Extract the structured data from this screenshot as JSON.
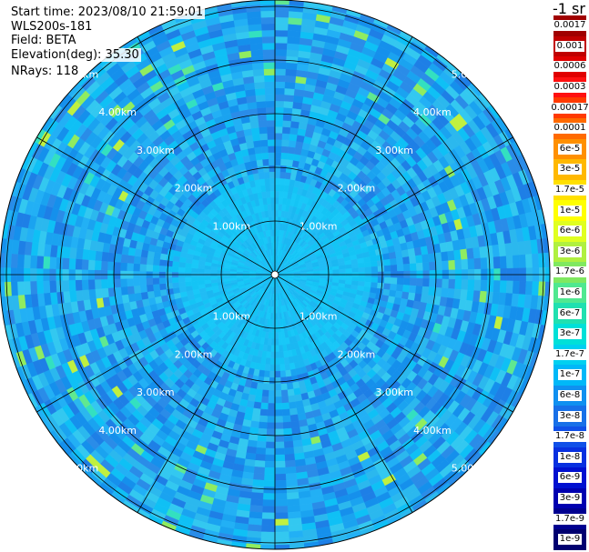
{
  "info": {
    "start_time": "Start time: 2023/08/10 21:59:01",
    "instrument": "WLS200s-181",
    "field": "Field: BETA",
    "elevation": "Elevation(deg): 35.30",
    "nrays": "NRays: 118"
  },
  "units": "-1 sr",
  "rings": {
    "labels": [
      "1.00km",
      "2.00km",
      "3.00km",
      "4.00km",
      "5.00km"
    ]
  },
  "colorbar": [
    {
      "label": "0.0017",
      "color": "#a00000"
    },
    {
      "label": "0.001",
      "color": "#c00000"
    },
    {
      "label": "0.0006",
      "color": "#e00000"
    },
    {
      "label": "0.0003",
      "color": "#ff1010"
    },
    {
      "label": "0.00017",
      "color": "#ff3a00"
    },
    {
      "label": "0.0001",
      "color": "#ff6a00"
    },
    {
      "label": "6e-5",
      "color": "#ff9000"
    },
    {
      "label": "3e-5",
      "color": "#ffb800"
    },
    {
      "label": "1.7e-5",
      "color": "#ffe000"
    },
    {
      "label": "1e-5",
      "color": "#ffff00"
    },
    {
      "label": "6e-6",
      "color": "#e0ff20"
    },
    {
      "label": "3e-6",
      "color": "#b0f040"
    },
    {
      "label": "1.7e-6",
      "color": "#80e860"
    },
    {
      "label": "1e-6",
      "color": "#50e890"
    },
    {
      "label": "6e-7",
      "color": "#20e0b0"
    },
    {
      "label": "3e-7",
      "color": "#00e0d8"
    },
    {
      "label": "1.7e-7",
      "color": "#00d0f0"
    },
    {
      "label": "1e-7",
      "color": "#00b8f8"
    },
    {
      "label": "6e-8",
      "color": "#1090f0"
    },
    {
      "label": "3e-8",
      "color": "#1870e8"
    },
    {
      "label": "1.7e-8",
      "color": "#1050e8"
    },
    {
      "label": "1e-8",
      "color": "#0830e0"
    },
    {
      "label": "6e-9",
      "color": "#0010d0"
    },
    {
      "label": "3e-9",
      "color": "#0000b0"
    },
    {
      "label": "1.7e-9",
      "color": "#000090"
    },
    {
      "label": "1e-9",
      "color": "#000070"
    }
  ]
}
